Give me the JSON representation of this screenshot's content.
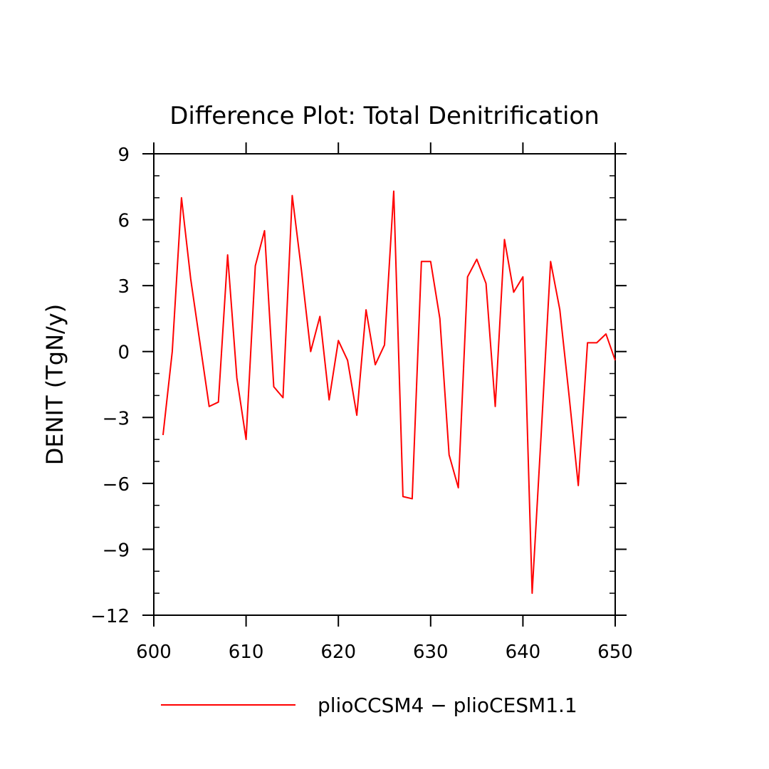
{
  "chart_data": {
    "type": "line",
    "title": "Difference Plot: Total Denitrification",
    "xlabel": "",
    "ylabel": "DENIT  (TgN/y)",
    "xlim": [
      600,
      650
    ],
    "ylim": [
      -12,
      9
    ],
    "x_ticks": [
      600,
      610,
      620,
      630,
      640,
      650
    ],
    "y_ticks": [
      -12,
      -9,
      -6,
      -3,
      0,
      3,
      6,
      9
    ],
    "x_tick_labels": [
      "600",
      "610",
      "620",
      "630",
      "640",
      "650"
    ],
    "y_tick_labels": [
      "−12",
      "−9",
      "−6",
      "−3",
      "0",
      "3",
      "6",
      "9"
    ],
    "grid": false,
    "legend_position": "bottom",
    "series": [
      {
        "name": "plioCCSM4 − plioCESM1.1",
        "color": "#ff0000",
        "x": [
          601,
          602,
          603,
          604,
          605,
          606,
          607,
          608,
          609,
          610,
          611,
          612,
          613,
          614,
          615,
          616,
          617,
          618,
          619,
          620,
          621,
          622,
          623,
          624,
          625,
          626,
          627,
          628,
          629,
          630,
          631,
          632,
          633,
          634,
          635,
          636,
          637,
          638,
          639,
          640,
          641,
          642,
          643,
          644,
          645,
          646,
          647,
          648,
          649,
          650
        ],
        "values": [
          -3.8,
          0.0,
          7.0,
          3.3,
          0.4,
          -2.5,
          -2.3,
          4.4,
          -1.2,
          -4.0,
          3.9,
          5.5,
          -1.6,
          -2.1,
          7.1,
          3.7,
          0.0,
          1.6,
          -2.2,
          0.5,
          -0.4,
          -2.9,
          1.9,
          -0.6,
          0.3,
          7.3,
          -6.6,
          -6.7,
          4.1,
          4.1,
          1.5,
          -4.7,
          -6.2,
          3.4,
          4.2,
          3.1,
          -2.5,
          5.1,
          2.7,
          3.4,
          -11.0,
          -3.6,
          4.1,
          1.9,
          -2.0,
          -6.1,
          0.4,
          0.4,
          0.8,
          -0.4
        ]
      }
    ]
  }
}
